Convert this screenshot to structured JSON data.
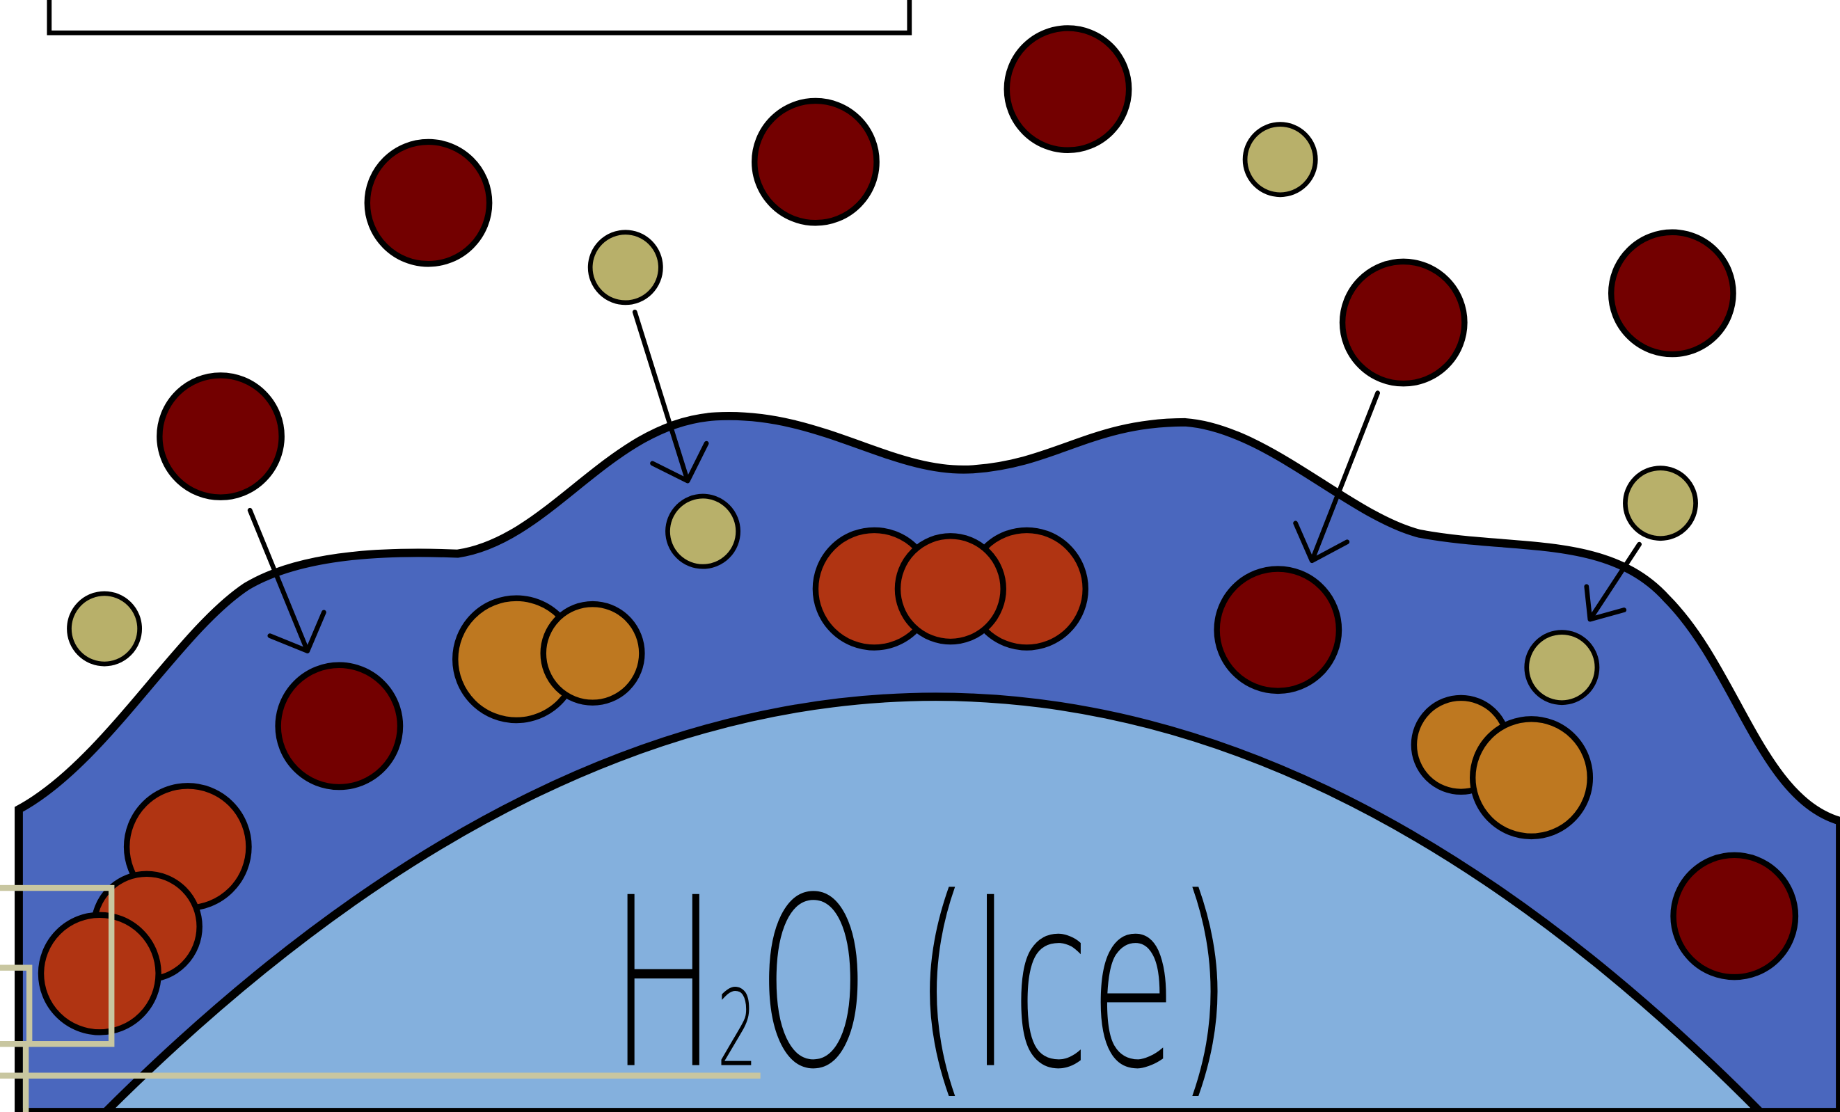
{
  "label": {
    "parts": [
      "H",
      "2",
      "O (Ice)"
    ]
  }
}
